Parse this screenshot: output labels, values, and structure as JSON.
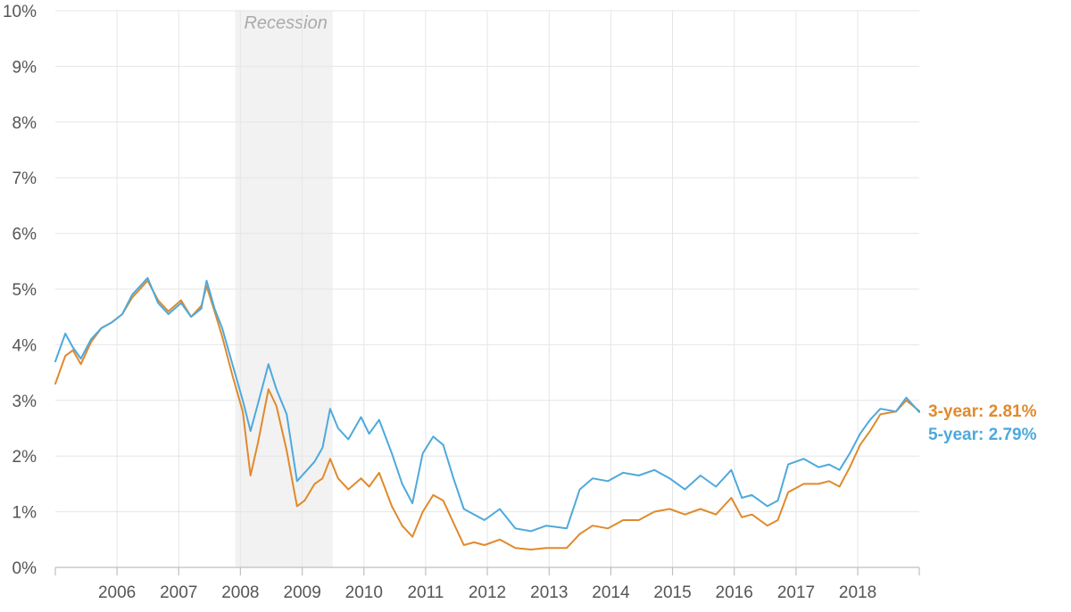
{
  "chart_data": {
    "type": "line",
    "title": "",
    "xlabel": "",
    "ylabel": "",
    "x_range": [
      "2005-01-01",
      "2018-12-31"
    ],
    "ylim": [
      0,
      10
    ],
    "y_ticks": [
      "0%",
      "1%",
      "2%",
      "3%",
      "4%",
      "5%",
      "6%",
      "7%",
      "8%",
      "9%",
      "10%"
    ],
    "x_ticks": [
      "2006",
      "2007",
      "2008",
      "2009",
      "2010",
      "2011",
      "2012",
      "2013",
      "2014",
      "2015",
      "2016",
      "2017",
      "2018"
    ],
    "grid": true,
    "legend": "none",
    "recession": {
      "label": "Recession",
      "start": "2007-12-01",
      "end": "2009-06-30"
    },
    "series": [
      {
        "name": "3-year",
        "end_label": "3-year: 2.81%",
        "color": "#e08a2c",
        "points": [
          [
            "2005-01-01",
            3.3
          ],
          [
            "2005-03-01",
            3.8
          ],
          [
            "2005-04-15",
            3.9
          ],
          [
            "2005-06-01",
            3.65
          ],
          [
            "2005-08-01",
            4.05
          ],
          [
            "2005-10-01",
            4.3
          ],
          [
            "2005-12-01",
            4.4
          ],
          [
            "2006-02-01",
            4.55
          ],
          [
            "2006-04-01",
            4.85
          ],
          [
            "2006-06-01",
            5.05
          ],
          [
            "2006-07-01",
            5.15
          ],
          [
            "2006-09-01",
            4.8
          ],
          [
            "2006-11-01",
            4.6
          ],
          [
            "2007-01-15",
            4.8
          ],
          [
            "2007-03-15",
            4.5
          ],
          [
            "2007-05-15",
            4.7
          ],
          [
            "2007-06-15",
            5.05
          ],
          [
            "2007-08-01",
            4.6
          ],
          [
            "2007-09-15",
            4.15
          ],
          [
            "2007-11-15",
            3.45
          ],
          [
            "2008-01-15",
            2.8
          ],
          [
            "2008-03-01",
            1.65
          ],
          [
            "2008-04-15",
            2.25
          ],
          [
            "2008-06-15",
            3.2
          ],
          [
            "2008-08-01",
            2.9
          ],
          [
            "2008-10-01",
            2.1
          ],
          [
            "2008-12-01",
            1.1
          ],
          [
            "2009-01-15",
            1.2
          ],
          [
            "2009-03-15",
            1.5
          ],
          [
            "2009-05-01",
            1.6
          ],
          [
            "2009-06-15",
            1.95
          ],
          [
            "2009-08-01",
            1.6
          ],
          [
            "2009-10-01",
            1.4
          ],
          [
            "2009-12-15",
            1.6
          ],
          [
            "2010-02-01",
            1.45
          ],
          [
            "2010-04-01",
            1.7
          ],
          [
            "2010-06-15",
            1.1
          ],
          [
            "2010-08-15",
            0.75
          ],
          [
            "2010-10-15",
            0.55
          ],
          [
            "2010-12-15",
            1.0
          ],
          [
            "2011-02-15",
            1.3
          ],
          [
            "2011-04-15",
            1.2
          ],
          [
            "2011-06-15",
            0.8
          ],
          [
            "2011-08-15",
            0.4
          ],
          [
            "2011-10-15",
            0.45
          ],
          [
            "2011-12-15",
            0.4
          ],
          [
            "2012-03-15",
            0.5
          ],
          [
            "2012-06-15",
            0.35
          ],
          [
            "2012-09-15",
            0.32
          ],
          [
            "2012-12-15",
            0.35
          ],
          [
            "2013-04-15",
            0.35
          ],
          [
            "2013-07-01",
            0.6
          ],
          [
            "2013-09-15",
            0.75
          ],
          [
            "2013-12-15",
            0.7
          ],
          [
            "2014-03-15",
            0.85
          ],
          [
            "2014-06-15",
            0.85
          ],
          [
            "2014-09-15",
            1.0
          ],
          [
            "2014-12-15",
            1.05
          ],
          [
            "2015-03-15",
            0.95
          ],
          [
            "2015-06-15",
            1.05
          ],
          [
            "2015-09-15",
            0.95
          ],
          [
            "2015-12-15",
            1.25
          ],
          [
            "2016-02-15",
            0.9
          ],
          [
            "2016-04-15",
            0.95
          ],
          [
            "2016-07-15",
            0.75
          ],
          [
            "2016-09-15",
            0.85
          ],
          [
            "2016-11-15",
            1.35
          ],
          [
            "2017-02-15",
            1.5
          ],
          [
            "2017-05-15",
            1.5
          ],
          [
            "2017-07-15",
            1.55
          ],
          [
            "2017-09-15",
            1.45
          ],
          [
            "2017-11-15",
            1.8
          ],
          [
            "2018-01-15",
            2.2
          ],
          [
            "2018-03-15",
            2.45
          ],
          [
            "2018-05-15",
            2.75
          ],
          [
            "2018-08-15",
            2.8
          ],
          [
            "2018-10-15",
            3.0
          ],
          [
            "2018-12-31",
            2.81
          ]
        ]
      },
      {
        "name": "5-year",
        "end_label": "5-year: 2.79%",
        "color": "#4ea9dc",
        "points": [
          [
            "2005-01-01",
            3.7
          ],
          [
            "2005-03-01",
            4.2
          ],
          [
            "2005-04-15",
            3.95
          ],
          [
            "2005-06-01",
            3.75
          ],
          [
            "2005-08-01",
            4.1
          ],
          [
            "2005-10-01",
            4.3
          ],
          [
            "2005-12-01",
            4.4
          ],
          [
            "2006-02-01",
            4.55
          ],
          [
            "2006-04-01",
            4.9
          ],
          [
            "2006-06-01",
            5.1
          ],
          [
            "2006-07-01",
            5.2
          ],
          [
            "2006-09-01",
            4.75
          ],
          [
            "2006-11-01",
            4.55
          ],
          [
            "2007-01-15",
            4.75
          ],
          [
            "2007-03-15",
            4.5
          ],
          [
            "2007-05-15",
            4.65
          ],
          [
            "2007-06-15",
            5.15
          ],
          [
            "2007-08-01",
            4.65
          ],
          [
            "2007-09-15",
            4.3
          ],
          [
            "2007-11-15",
            3.65
          ],
          [
            "2008-01-15",
            3.0
          ],
          [
            "2008-03-01",
            2.45
          ],
          [
            "2008-04-15",
            2.95
          ],
          [
            "2008-06-15",
            3.65
          ],
          [
            "2008-08-01",
            3.2
          ],
          [
            "2008-10-01",
            2.75
          ],
          [
            "2008-12-01",
            1.55
          ],
          [
            "2009-01-15",
            1.7
          ],
          [
            "2009-03-15",
            1.9
          ],
          [
            "2009-05-01",
            2.15
          ],
          [
            "2009-06-15",
            2.85
          ],
          [
            "2009-08-01",
            2.5
          ],
          [
            "2009-10-01",
            2.3
          ],
          [
            "2009-12-15",
            2.7
          ],
          [
            "2010-02-01",
            2.4
          ],
          [
            "2010-04-01",
            2.65
          ],
          [
            "2010-06-15",
            2.05
          ],
          [
            "2010-08-15",
            1.5
          ],
          [
            "2010-10-15",
            1.15
          ],
          [
            "2010-12-15",
            2.05
          ],
          [
            "2011-02-15",
            2.35
          ],
          [
            "2011-04-15",
            2.2
          ],
          [
            "2011-06-15",
            1.6
          ],
          [
            "2011-08-15",
            1.05
          ],
          [
            "2011-10-15",
            0.95
          ],
          [
            "2011-12-15",
            0.85
          ],
          [
            "2012-03-15",
            1.05
          ],
          [
            "2012-06-15",
            0.7
          ],
          [
            "2012-09-15",
            0.65
          ],
          [
            "2012-12-15",
            0.75
          ],
          [
            "2013-04-15",
            0.7
          ],
          [
            "2013-07-01",
            1.4
          ],
          [
            "2013-09-15",
            1.6
          ],
          [
            "2013-12-15",
            1.55
          ],
          [
            "2014-03-15",
            1.7
          ],
          [
            "2014-06-15",
            1.65
          ],
          [
            "2014-09-15",
            1.75
          ],
          [
            "2014-12-15",
            1.6
          ],
          [
            "2015-03-15",
            1.4
          ],
          [
            "2015-06-15",
            1.65
          ],
          [
            "2015-09-15",
            1.45
          ],
          [
            "2015-12-15",
            1.75
          ],
          [
            "2016-02-15",
            1.25
          ],
          [
            "2016-04-15",
            1.3
          ],
          [
            "2016-07-15",
            1.1
          ],
          [
            "2016-09-15",
            1.2
          ],
          [
            "2016-11-15",
            1.85
          ],
          [
            "2017-02-15",
            1.95
          ],
          [
            "2017-05-15",
            1.8
          ],
          [
            "2017-07-15",
            1.85
          ],
          [
            "2017-09-15",
            1.75
          ],
          [
            "2017-11-15",
            2.05
          ],
          [
            "2018-01-15",
            2.4
          ],
          [
            "2018-03-15",
            2.65
          ],
          [
            "2018-05-15",
            2.85
          ],
          [
            "2018-08-15",
            2.8
          ],
          [
            "2018-10-15",
            3.05
          ],
          [
            "2018-12-31",
            2.79
          ]
        ]
      }
    ]
  }
}
